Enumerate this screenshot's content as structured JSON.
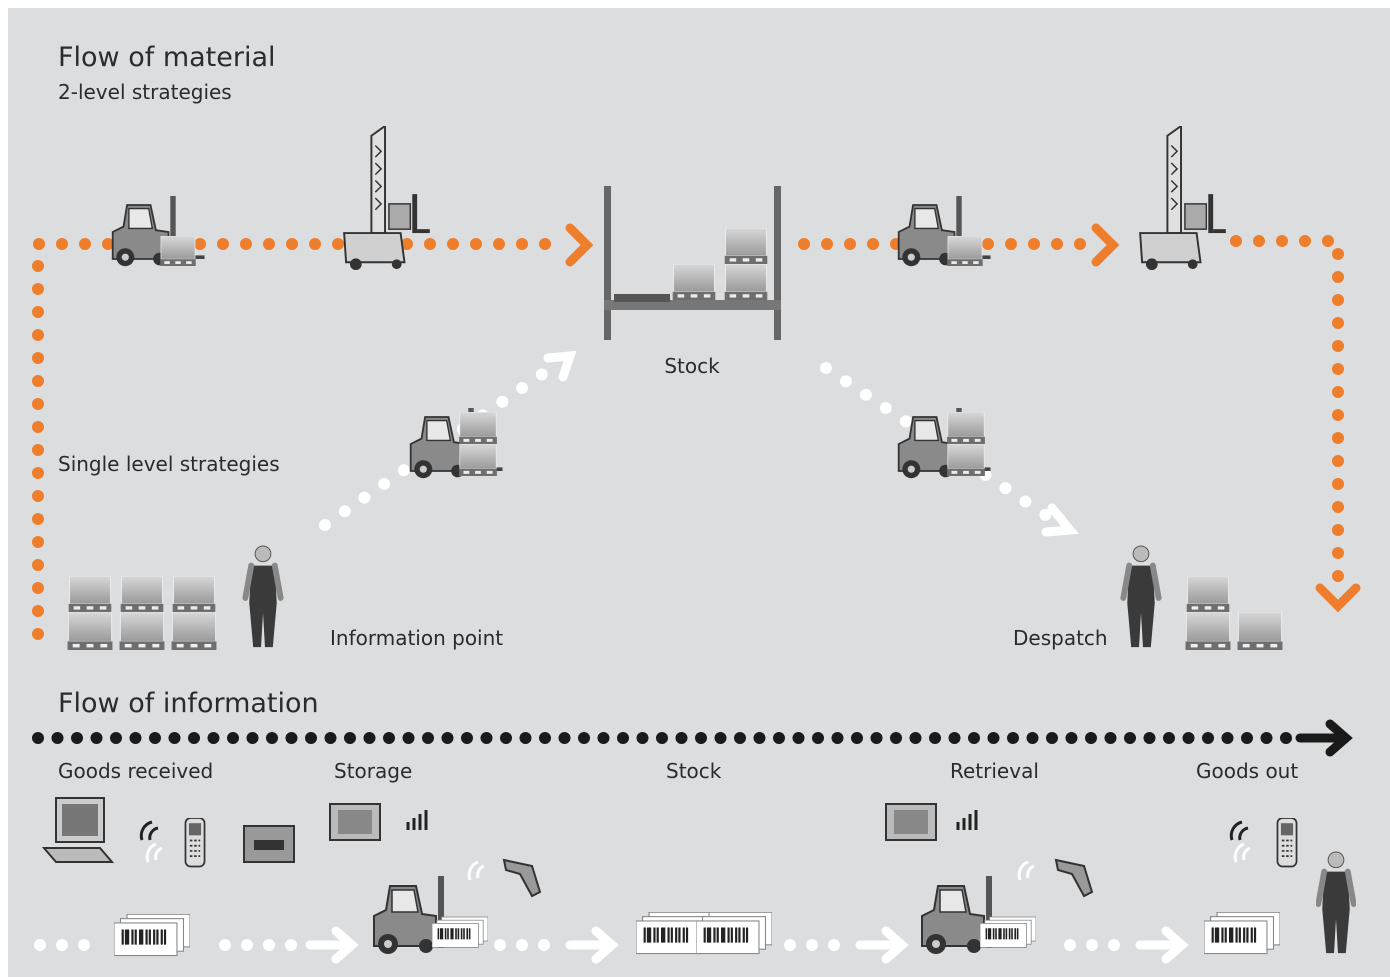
{
  "material": {
    "title": "Flow of material",
    "subtitle": "2-level strategies",
    "stock": "Stock",
    "single_level": "Single level strategies",
    "information_point": "Information point",
    "despatch": "Despatch"
  },
  "information": {
    "title": "Flow of information",
    "stages": [
      "Goods received",
      "Storage",
      "Stock",
      "Retrieval",
      "Goods out"
    ]
  }
}
